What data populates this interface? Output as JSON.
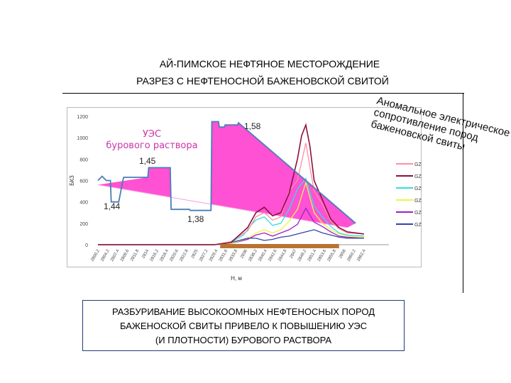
{
  "titles": {
    "line1": "АЙ-ПИМСКОЕ НЕФТЯНОЕ МЕСТОРОЖДЕНИЕ",
    "line2": "РАЗРЕЗ С НЕФТЕНОСНОЙ БАЖЕНОВСКОЙ СВИТОЙ"
  },
  "note": {
    "line1": "РАЗБУРИВАНИЕ ВЫСОКООМНЫХ НЕФТЕНОСНЫХ ПОРОД",
    "line2": "БАЖЕНОСКОЙ СВИТЫ ПРИВЕЛО К ПОВЫШЕНИЮ УЭС",
    "line3": "(И ПЛОТНОСТИ) БУРОВОГО РАСТВОРА"
  },
  "chart_data": {
    "type": "line",
    "ylabel": "БКЗ",
    "xlabel": "Н, м",
    "ylim": [
      0,
      1200
    ],
    "yticks": [
      0,
      200,
      400,
      600,
      800,
      1000,
      1200
    ],
    "xlim": [
      2800,
      2870
    ],
    "xticks": [
      "2800,2",
      "2804,2",
      "2807,4",
      "2809,6",
      "2811,8",
      "2814",
      "2816,2",
      "2818,4",
      "2820,6",
      "2822,8",
      "2825",
      "2827,2",
      "2829,4",
      "2831,6",
      "2833,8",
      "2836",
      "2838,2",
      "2840,4",
      "2842,6",
      "2844,8",
      "2847",
      "2849,2",
      "2851,4",
      "2853,6",
      "2855,8",
      "2858",
      "2860,2",
      "2862,4"
    ],
    "density_labels": [
      "1,44",
      "1,45",
      "1,38",
      "1,58"
    ],
    "overlay_label": [
      "УЭС",
      "бурового раствора"
    ],
    "anomaly_label": [
      "Аномальное электрическое",
      "сопротивление пород",
      "баженовской свиты"
    ],
    "legend": [
      "GZ1",
      "GZ2",
      "GZ3B",
      "GZ3",
      "GZ4",
      "GZ5"
    ],
    "colors": {
      "GZ1": "#ff8fa0",
      "GZ2": "#8a1040",
      "GZ3B": "#33dddd",
      "GZ3": "#f2f24a",
      "GZ4": "#a020c0",
      "GZ5": "#3344aa",
      "mud": "#4a7eb8",
      "fill": "#ff33cc",
      "accent": "#cc33aa",
      "bar": "#b87333"
    },
    "series": [
      {
        "name": "GZ1",
        "x": [
          2800,
          2828,
          2832,
          2836,
          2838,
          2840,
          2842,
          2844,
          2846,
          2848,
          2850,
          2852,
          2854,
          2856,
          2858,
          2860,
          2864
        ],
        "values": [
          0,
          0,
          30,
          130,
          260,
          300,
          230,
          260,
          500,
          600,
          950,
          500,
          380,
          220,
          150,
          110,
          100
        ]
      },
      {
        "name": "GZ2",
        "x": [
          2800,
          2828,
          2832,
          2836,
          2838,
          2840,
          2842,
          2844,
          2846,
          2848,
          2849,
          2850,
          2851,
          2852,
          2854,
          2856,
          2858,
          2860,
          2864
        ],
        "values": [
          0,
          0,
          20,
          160,
          300,
          350,
          270,
          300,
          480,
          800,
          1020,
          1120,
          920,
          600,
          420,
          240,
          160,
          120,
          100
        ]
      },
      {
        "name": "GZ3B",
        "x": [
          2800,
          2828,
          2832,
          2835,
          2837,
          2838,
          2840,
          2842,
          2844,
          2846,
          2848,
          2850,
          2852,
          2854,
          2856,
          2858,
          2860,
          2864
        ],
        "values": [
          0,
          0,
          20,
          90,
          190,
          230,
          260,
          180,
          200,
          330,
          520,
          620,
          360,
          260,
          170,
          110,
          90,
          80
        ]
      },
      {
        "name": "GZ3",
        "x": [
          2800,
          2828,
          2832,
          2836,
          2838,
          2840,
          2842,
          2844,
          2846,
          2848,
          2850,
          2852,
          2854,
          2856,
          2858,
          2860,
          2864
        ],
        "values": [
          0,
          0,
          10,
          60,
          110,
          140,
          110,
          140,
          220,
          330,
          580,
          300,
          200,
          140,
          100,
          80,
          70
        ]
      },
      {
        "name": "GZ4",
        "x": [
          2800,
          2828,
          2832,
          2836,
          2838,
          2840,
          2842,
          2844,
          2846,
          2848,
          2850,
          2852,
          2854,
          2856,
          2858,
          2860,
          2864
        ],
        "values": [
          0,
          0,
          10,
          50,
          90,
          110,
          80,
          110,
          140,
          190,
          340,
          210,
          170,
          120,
          80,
          70,
          60
        ]
      },
      {
        "name": "GZ5",
        "x": [
          2800,
          2828,
          2832,
          2836,
          2838,
          2840,
          2842,
          2844,
          2846,
          2848,
          2850,
          2852,
          2854,
          2856,
          2858,
          2860,
          2864
        ],
        "values": [
          0,
          0,
          20,
          60,
          60,
          40,
          50,
          70,
          80,
          100,
          120,
          140,
          110,
          90,
          70,
          60,
          60
        ]
      }
    ],
    "mud_resistivity": {
      "x": [
        2800,
        2801,
        2802,
        2803,
        2803.2,
        2805,
        2806,
        2806.2,
        2812,
        2812.2,
        2817.4,
        2817.6,
        2822,
        2822.2,
        2827.2,
        2827.4,
        2829,
        2829.2,
        2830.4,
        2830.6,
        2833.6,
        2833.8,
        2862
      ],
      "values": [
        600,
        640,
        600,
        600,
        400,
        400,
        600,
        630,
        630,
        720,
        720,
        330,
        330,
        320,
        320,
        1150,
        1150,
        1100,
        1100,
        1120,
        1120,
        1140,
        200
      ]
    },
    "density_trend": {
      "x": [
        2800,
        2860
      ],
      "values": [
        560,
        160
      ]
    },
    "anomaly_interval": [
      2829.4,
      2858
    ]
  }
}
